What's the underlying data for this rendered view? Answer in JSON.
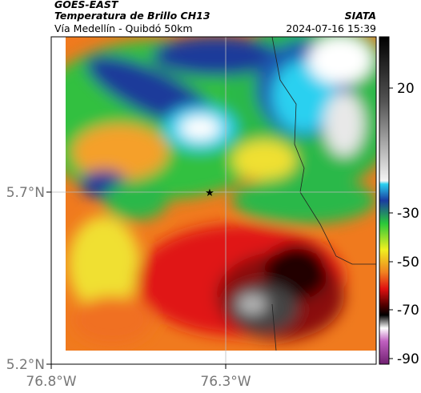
{
  "header": {
    "title": "GOES-EAST",
    "subtitle": "Temperatura de Brillo CH13",
    "location": "Vía Medellín - Quibdó 50km",
    "source": "SIATA",
    "datetime": "2024-07-16 15:39"
  },
  "axes": {
    "lat_labels": [
      "5.7°N",
      "5.2°N"
    ],
    "lon_labels": [
      "76.8°W",
      "76.3°W"
    ]
  },
  "colorbar": {
    "ticks": [
      20,
      -30,
      -50,
      -70,
      -90
    ]
  }
}
